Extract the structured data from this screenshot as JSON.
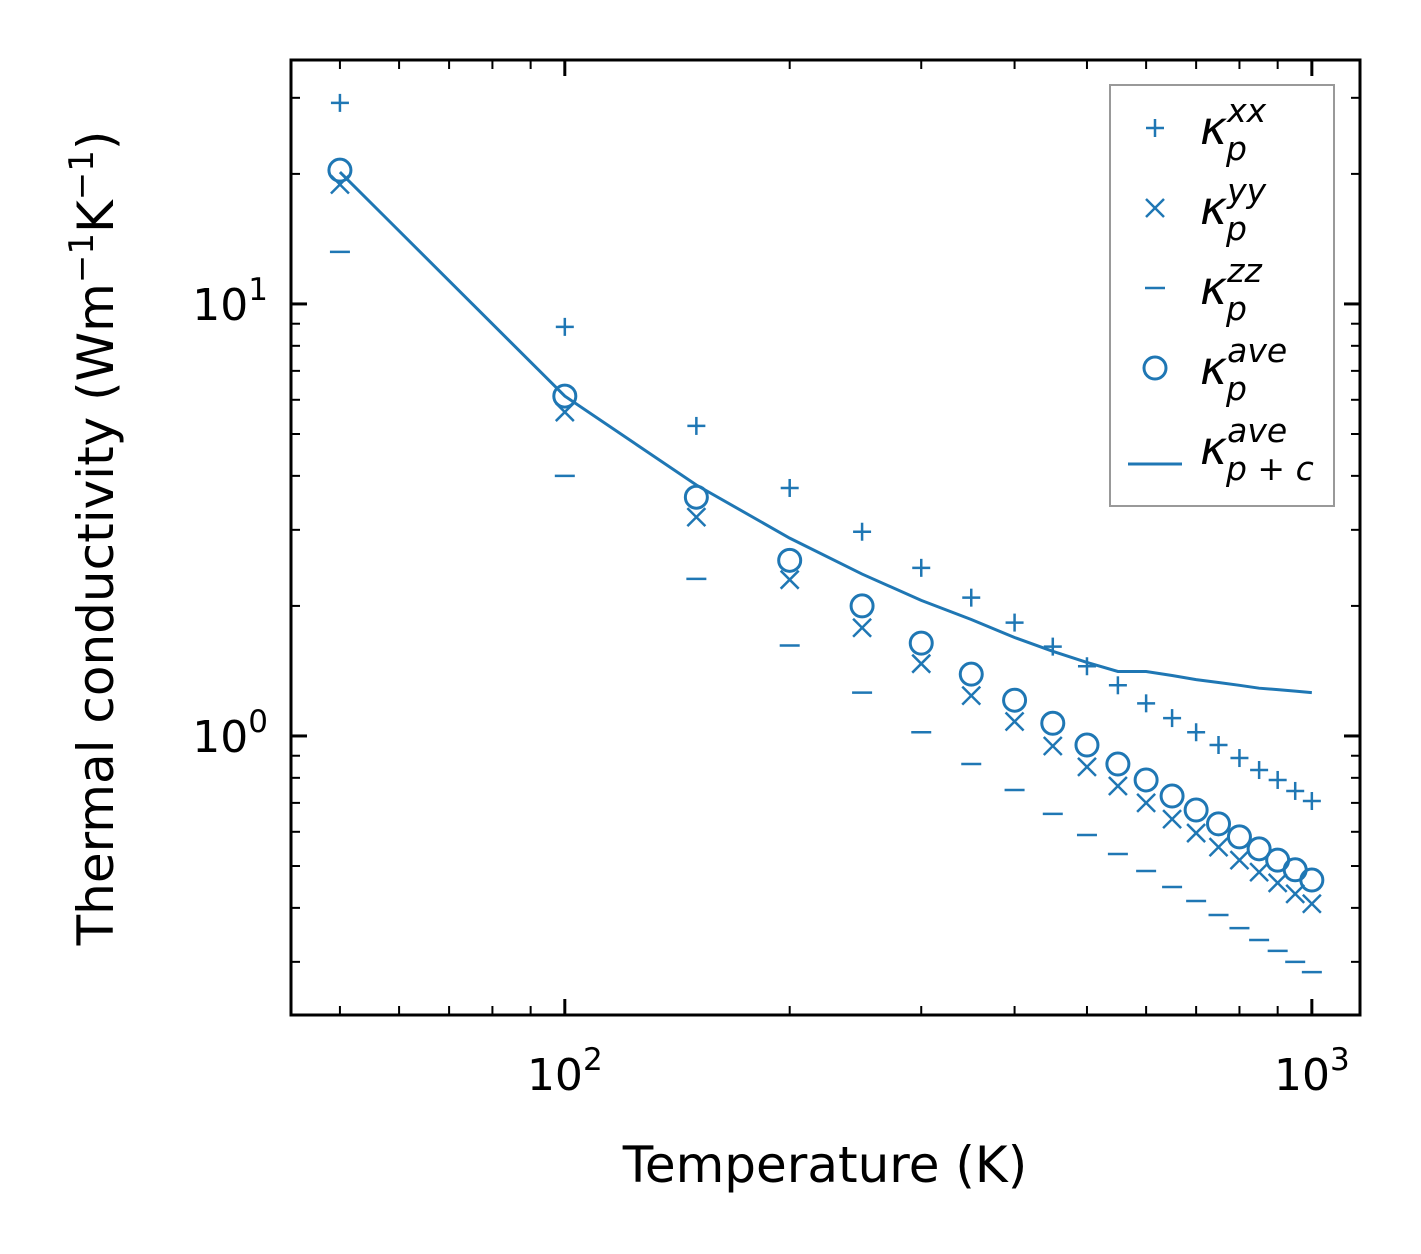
{
  "chart_data": {
    "type": "scatter",
    "title": "",
    "xlabel": "Temperature (K)",
    "ylabel_parts": {
      "pre": "Thermal conductivity (Wm",
      "sup1": "−1",
      "mid": "K",
      "sup2": "−1",
      "post": ")"
    },
    "xscale": "log",
    "yscale": "log",
    "xlim": [
      43,
      1160
    ],
    "ylim": [
      0.226,
      36.7
    ],
    "grid": false,
    "legend_placement": "top-right",
    "x_ticks": [
      {
        "base": "10",
        "exp": "2",
        "value": 100
      },
      {
        "base": "10",
        "exp": "3",
        "value": 1000
      }
    ],
    "y_ticks": [
      {
        "base": "10",
        "exp": "0",
        "value": 1
      },
      {
        "base": "10",
        "exp": "1",
        "value": 10
      }
    ],
    "x": [
      50,
      100,
      150,
      200,
      250,
      300,
      350,
      400,
      450,
      500,
      550,
      600,
      650,
      700,
      750,
      800,
      850,
      900,
      950,
      1000
    ],
    "series": [
      {
        "name": "kappa_p^xx",
        "label": {
          "base": "κ",
          "sub": "p",
          "sup": "xx"
        },
        "marker": "plus",
        "values": [
          29.2,
          8.85,
          5.22,
          3.75,
          2.97,
          2.45,
          2.09,
          1.83,
          1.61,
          1.45,
          1.31,
          1.19,
          1.1,
          1.02,
          0.953,
          0.889,
          0.834,
          0.791,
          0.746,
          0.707
        ]
      },
      {
        "name": "kappa_p^yy",
        "label": {
          "base": "κ",
          "sub": "p",
          "sup": "yy"
        },
        "marker": "x",
        "values": [
          18.9,
          5.62,
          3.21,
          2.3,
          1.78,
          1.47,
          1.24,
          1.08,
          0.948,
          0.848,
          0.766,
          0.7,
          0.642,
          0.596,
          0.553,
          0.516,
          0.484,
          0.457,
          0.431,
          0.409
        ]
      },
      {
        "name": "kappa_p^zz",
        "label": {
          "base": "κ",
          "sub": "p",
          "sup": "zz"
        },
        "marker": "hline",
        "values": [
          13.2,
          4.0,
          2.31,
          1.62,
          1.26,
          1.02,
          0.861,
          0.75,
          0.66,
          0.59,
          0.533,
          0.487,
          0.447,
          0.415,
          0.385,
          0.359,
          0.337,
          0.318,
          0.3,
          0.284
        ]
      },
      {
        "name": "kappa_p^ave",
        "label": {
          "base": "κ",
          "sub": "p",
          "sup": "ave"
        },
        "marker": "circle",
        "values": [
          20.4,
          6.12,
          3.57,
          2.55,
          2.0,
          1.64,
          1.39,
          1.21,
          1.07,
          0.953,
          0.861,
          0.791,
          0.726,
          0.674,
          0.626,
          0.584,
          0.548,
          0.516,
          0.49,
          0.464
        ]
      },
      {
        "name": "kappa_p+c^ave",
        "label": {
          "base": "κ",
          "sub": "p + c",
          "sup": "ave"
        },
        "marker": "line",
        "values": [
          20.2,
          6.12,
          3.81,
          2.87,
          2.37,
          2.06,
          1.86,
          1.69,
          1.57,
          1.48,
          1.41,
          1.41,
          1.38,
          1.35,
          1.33,
          1.31,
          1.29,
          1.28,
          1.27,
          1.26
        ]
      }
    ],
    "color": "#1f77b4"
  }
}
